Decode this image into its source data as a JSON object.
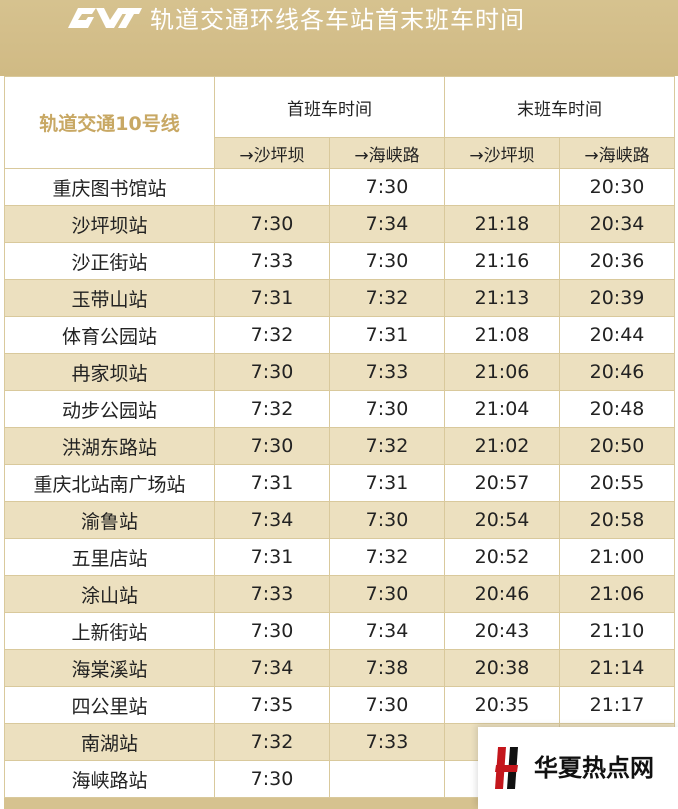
{
  "banner": {
    "title": "轨道交通环线各车站首末班车时间",
    "logo_icon": "metro-logo-icon"
  },
  "table": {
    "line_name": "轨道交通10号线",
    "first_train_label": "首班车时间",
    "last_train_label": "末班车时间",
    "dir_a": "→沙坪坝",
    "dir_b": "→海峡路",
    "rows": [
      {
        "station": "重庆图书馆站",
        "first_a": "",
        "first_b": "7:30",
        "last_a": "",
        "last_b": "20:30"
      },
      {
        "station": "沙坪坝站",
        "first_a": "7:30",
        "first_b": "7:34",
        "last_a": "21:18",
        "last_b": "20:34"
      },
      {
        "station": "沙正街站",
        "first_a": "7:33",
        "first_b": "7:30",
        "last_a": "21:16",
        "last_b": "20:36"
      },
      {
        "station": "玉带山站",
        "first_a": "7:31",
        "first_b": "7:32",
        "last_a": "21:13",
        "last_b": "20:39"
      },
      {
        "station": "体育公园站",
        "first_a": "7:32",
        "first_b": "7:31",
        "last_a": "21:08",
        "last_b": "20:44"
      },
      {
        "station": "冉家坝站",
        "first_a": "7:30",
        "first_b": "7:33",
        "last_a": "21:06",
        "last_b": "20:46"
      },
      {
        "station": "动步公园站",
        "first_a": "7:32",
        "first_b": "7:30",
        "last_a": "21:04",
        "last_b": "20:48"
      },
      {
        "station": "洪湖东路站",
        "first_a": "7:30",
        "first_b": "7:32",
        "last_a": "21:02",
        "last_b": "20:50"
      },
      {
        "station": "重庆北站南广场站",
        "first_a": "7:31",
        "first_b": "7:31",
        "last_a": "20:57",
        "last_b": "20:55"
      },
      {
        "station": "渝鲁站",
        "first_a": "7:34",
        "first_b": "7:30",
        "last_a": "20:54",
        "last_b": "20:58"
      },
      {
        "station": "五里店站",
        "first_a": "7:31",
        "first_b": "7:32",
        "last_a": "20:52",
        "last_b": "21:00"
      },
      {
        "station": "涂山站",
        "first_a": "7:33",
        "first_b": "7:30",
        "last_a": "20:46",
        "last_b": "21:06"
      },
      {
        "station": "上新街站",
        "first_a": "7:30",
        "first_b": "7:34",
        "last_a": "20:43",
        "last_b": "21:10"
      },
      {
        "station": "海棠溪站",
        "first_a": "7:34",
        "first_b": "7:38",
        "last_a": "20:38",
        "last_b": "21:14"
      },
      {
        "station": "四公里站",
        "first_a": "7:35",
        "first_b": "7:30",
        "last_a": "20:35",
        "last_b": "21:17"
      },
      {
        "station": "南湖站",
        "first_a": "7:32",
        "first_b": "7:33",
        "last_a": "2",
        "last_b": ""
      },
      {
        "station": "海峡路站",
        "first_a": "7:30",
        "first_b": "",
        "last_a": "2",
        "last_b": ""
      }
    ]
  },
  "watermark": {
    "text": "华夏热点网",
    "icon": "huaxia-logo-icon",
    "accent_color": "#c4161c"
  }
}
